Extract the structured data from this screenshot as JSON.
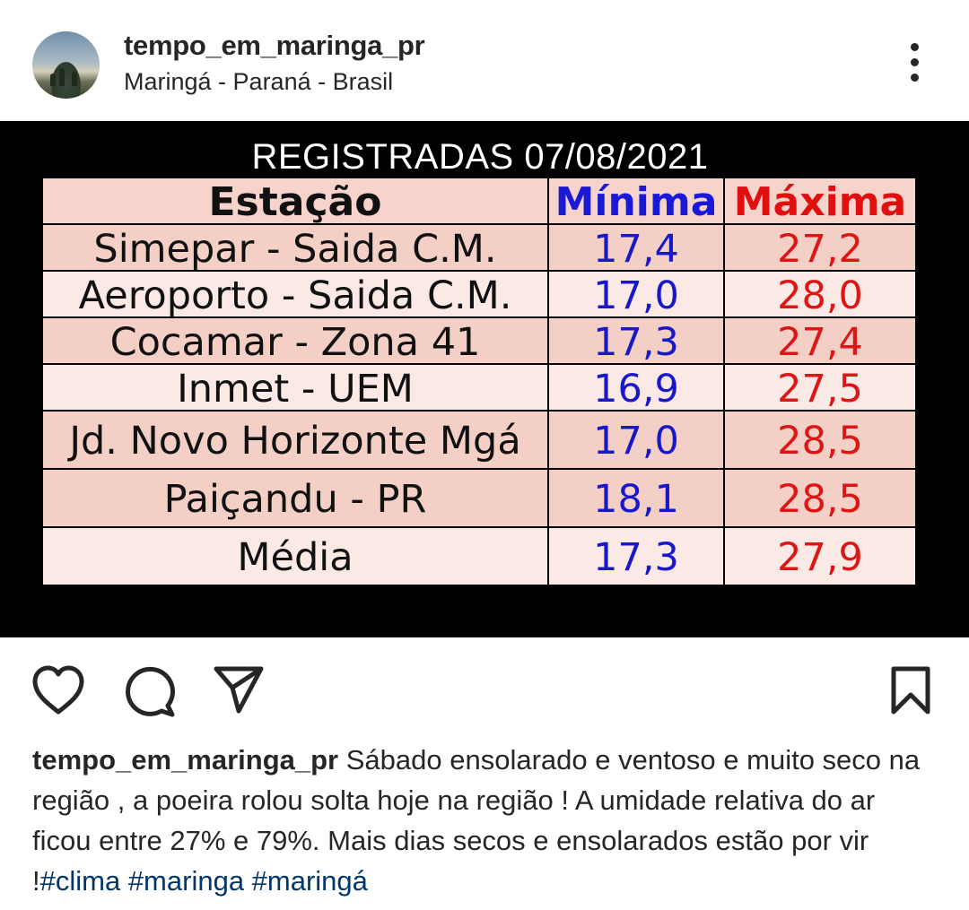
{
  "header": {
    "username": "tempo_em_maringa_pr",
    "location": "Maringá - Paraná - Brasil"
  },
  "post": {
    "title": "REGISTRADAS 07/08/2021",
    "columns": [
      "Estação",
      "Mínima",
      "Máxima"
    ],
    "rows": [
      {
        "station": "Simepar - Saida C.M.",
        "min": "17,4",
        "max": "27,2"
      },
      {
        "station": "Aeroporto - Saida C.M.",
        "min": "17,0",
        "max": "28,0"
      },
      {
        "station": "Cocamar - Zona 41",
        "min": "17,3",
        "max": "27,4"
      },
      {
        "station": "Inmet - UEM",
        "min": "16,9",
        "max": "27,5"
      },
      {
        "station": "Jd. Novo Horizonte Mgá",
        "min": "17,0",
        "max": "28,5"
      },
      {
        "station": "Paiçandu - PR",
        "min": "18,1",
        "max": "28,5"
      },
      {
        "station": "Média",
        "min": "17,3",
        "max": "27,9"
      }
    ]
  },
  "caption": {
    "username": "tempo_em_maringa_pr",
    "text": " Sábado ensolarado e ventoso e muito seco na região , a poeira rolou solta hoje na região ! A umidade relativa do ar ficou entre 27% e 79%. Mais dias secos e ensolarados estão por vir !",
    "hashtags": "#clima #maringa #maringá"
  },
  "icons": {
    "like": "heart-icon",
    "comment": "comment-icon",
    "share": "send-icon",
    "save": "bookmark-icon",
    "more": "more-options-icon"
  },
  "colors": {
    "min_value": "#1818c8",
    "max_value": "#dd1515",
    "hashtag": "#00376b"
  }
}
